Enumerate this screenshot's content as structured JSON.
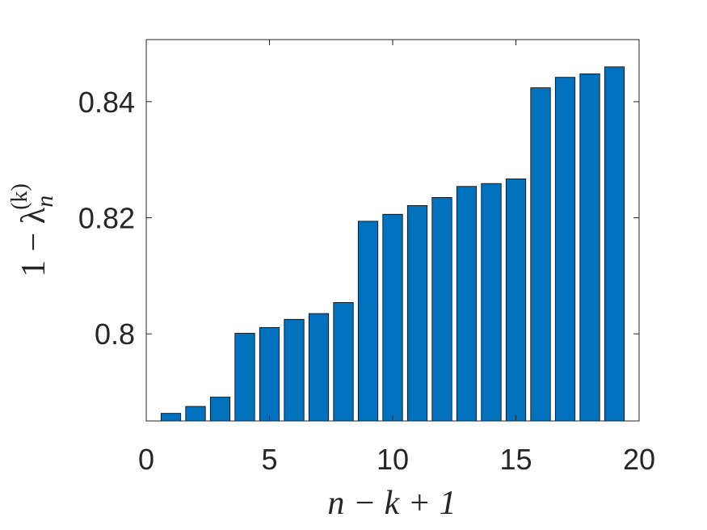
{
  "chart_data": {
    "type": "bar",
    "xlabel": "n − k + 1",
    "ylabel": {
      "base": "1 − λ",
      "sub": "n",
      "sup": "(k)"
    },
    "x": [
      1,
      2,
      3,
      4,
      5,
      6,
      7,
      8,
      9,
      10,
      11,
      12,
      13,
      14,
      15,
      16,
      17,
      18,
      19
    ],
    "values": [
      0.7863,
      0.7875,
      0.7891,
      0.8001,
      0.8011,
      0.8025,
      0.8035,
      0.8054,
      0.8194,
      0.8206,
      0.8221,
      0.8235,
      0.8254,
      0.8259,
      0.8267,
      0.8424,
      0.8442,
      0.8448,
      0.846
    ],
    "color": "#0072bd",
    "xlim": [
      0,
      20
    ],
    "xticks": [
      0,
      5,
      10,
      15,
      20
    ],
    "ylim": [
      0.785,
      0.8507
    ],
    "yticks": [
      0.8,
      0.82,
      0.84
    ],
    "grid": false
  }
}
